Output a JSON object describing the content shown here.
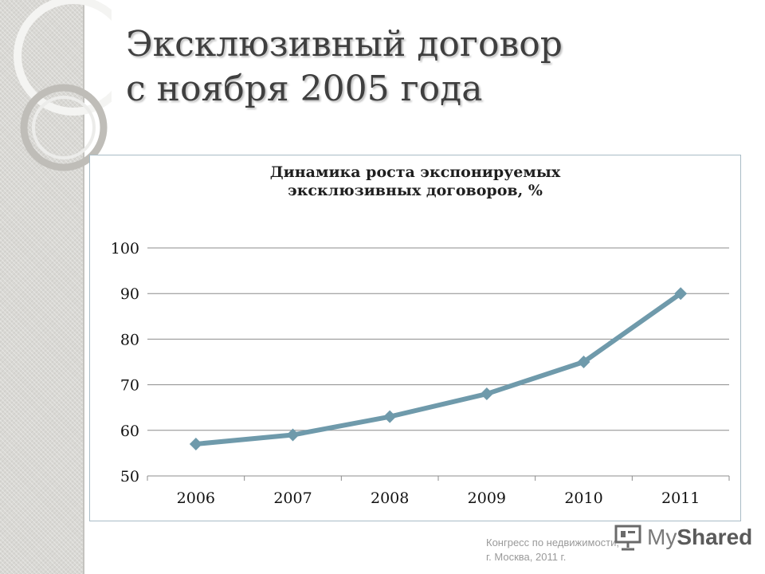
{
  "slide": {
    "title_line1": "Эксклюзивный договор",
    "title_line2": "с ноября 2005 года"
  },
  "footer": {
    "line1": "Конгресс по недвижимости,",
    "line2": "г. Москва, 2011 г."
  },
  "logo": {
    "text_my": "My",
    "text_shared": "Shared",
    "icon": "projector-screen-icon"
  },
  "colors": {
    "line": "#6f9aab",
    "grid": "#8c8c8c",
    "title": "#3f3f3f",
    "panel": "#d9d8d4"
  },
  "chart_data": {
    "type": "line",
    "title_line1": "Динамика роста экспонируемых",
    "title_line2": "эксклюзивных договоров, %",
    "categories": [
      "2006",
      "2007",
      "2008",
      "2009",
      "2010",
      "2011"
    ],
    "series": [
      {
        "values": [
          57,
          59,
          63,
          68,
          75,
          90
        ]
      }
    ],
    "ylim": [
      50,
      100
    ],
    "yticks": [
      "50",
      "60",
      "70",
      "80",
      "90",
      "100"
    ],
    "marker": "diamond",
    "grid": true,
    "legend": "none"
  }
}
